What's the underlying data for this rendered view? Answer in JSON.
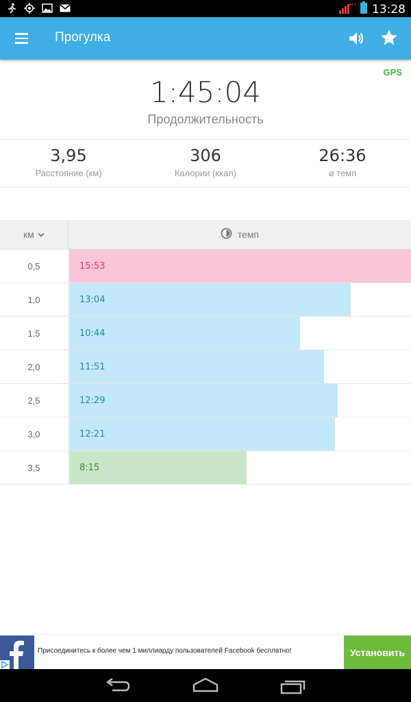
{
  "statusbar": {
    "time": "13:28",
    "icons": [
      "running-icon",
      "gps-icon",
      "image-icon",
      "gmail-icon"
    ],
    "network_label": "H+"
  },
  "appbar": {
    "title": "Прогулка",
    "menu_icon": "menu-icon",
    "sound_icon": "volume-icon",
    "favorite_icon": "star-icon",
    "color": "#40aee6"
  },
  "gps_label": "GPS",
  "duration": {
    "value": "1:45:04",
    "label": "Продолжительность"
  },
  "stats": [
    {
      "value": "3,95",
      "label": "Расстояние (км)"
    },
    {
      "value": "306",
      "label": "Калории (ккал)"
    },
    {
      "value": "26:36",
      "label": "ø темп"
    }
  ],
  "table": {
    "km_header": "км",
    "pace_header": "темп",
    "pace_max_seconds": 953,
    "rows": [
      {
        "km": "0,5",
        "pace": "15:53",
        "seconds": 953,
        "status": "slow"
      },
      {
        "km": "1,0",
        "pace": "13:04",
        "seconds": 784,
        "status": "normal"
      },
      {
        "km": "1,5",
        "pace": "10:44",
        "seconds": 644,
        "status": "normal"
      },
      {
        "km": "2,0",
        "pace": "11:51",
        "seconds": 711,
        "status": "normal"
      },
      {
        "km": "2,5",
        "pace": "12:29",
        "seconds": 749,
        "status": "normal"
      },
      {
        "km": "3,0",
        "pace": "12:21",
        "seconds": 741,
        "status": "normal"
      },
      {
        "km": "3,5",
        "pace": "8:15",
        "seconds": 495,
        "status": "fast"
      }
    ],
    "colors": {
      "slow_bg": "#f8c6d6",
      "slow_text": "#d83a6a",
      "normal_bg": "#c3e8f9",
      "normal_text": "#1b8bc0",
      "fast_bg": "#c8e6c9",
      "fast_text": "#3d8f3f"
    }
  },
  "ad": {
    "text": "Присоединитесь к более чем 1 миллиарду пользователей Facebook бесплатно!",
    "button": "Установить",
    "logo_letter": "f"
  },
  "navbar": {
    "buttons": [
      "back-icon",
      "home-icon",
      "recent-apps-icon"
    ]
  }
}
